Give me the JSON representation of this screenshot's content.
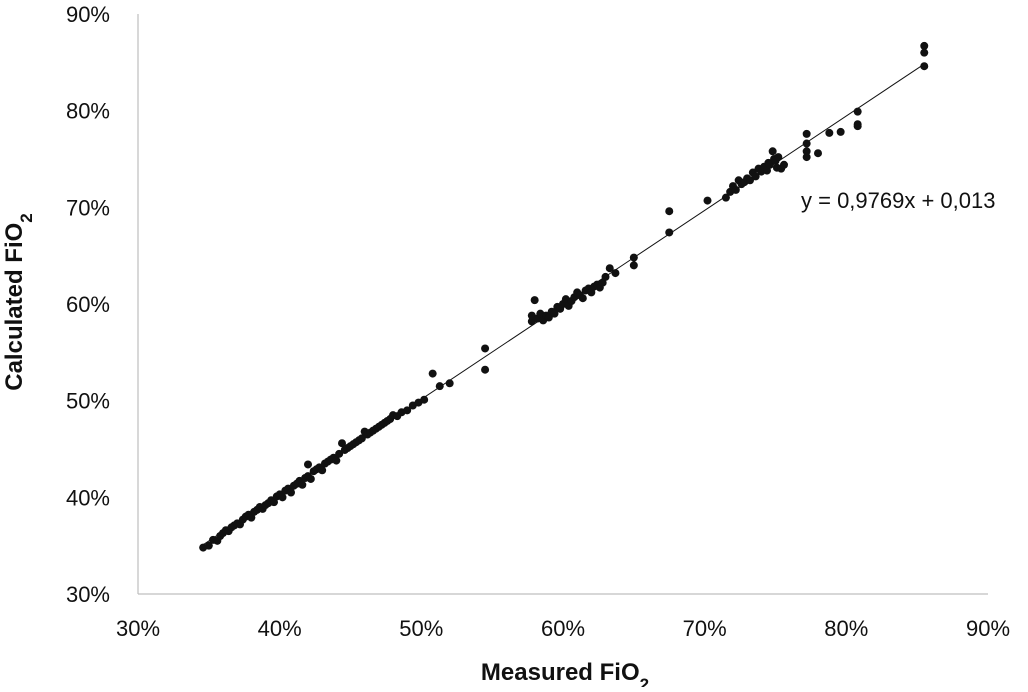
{
  "chart_data": {
    "type": "scatter",
    "xlabel": "Measured FiO",
    "xlabel_subscript": "2",
    "ylabel": "Calculated FiO",
    "ylabel_subscript": "2",
    "xlim": [
      0.3,
      0.9
    ],
    "ylim": [
      0.3,
      0.9
    ],
    "x_ticks": [
      "30%",
      "40%",
      "50%",
      "60%",
      "70%",
      "80%",
      "90%"
    ],
    "y_ticks": [
      "30%",
      "40%",
      "50%",
      "60%",
      "70%",
      "80%",
      "90%"
    ],
    "grid": false,
    "legend": "none",
    "marker_color": "#111111",
    "trendline": {
      "equation": "y = 0,9769x + 0,013",
      "slope": 0.9769,
      "intercept": 0.013,
      "x_range": [
        0.345,
        0.855
      ]
    },
    "series": [
      {
        "points": [
          [
            0.346,
            0.348
          ],
          [
            0.35,
            0.35
          ],
          [
            0.353,
            0.356
          ],
          [
            0.356,
            0.355
          ],
          [
            0.358,
            0.36
          ],
          [
            0.36,
            0.363
          ],
          [
            0.362,
            0.366
          ],
          [
            0.364,
            0.365
          ],
          [
            0.366,
            0.369
          ],
          [
            0.368,
            0.371
          ],
          [
            0.37,
            0.373
          ],
          [
            0.372,
            0.372
          ],
          [
            0.374,
            0.377
          ],
          [
            0.376,
            0.38
          ],
          [
            0.378,
            0.382
          ],
          [
            0.38,
            0.379
          ],
          [
            0.382,
            0.385
          ],
          [
            0.384,
            0.387
          ],
          [
            0.386,
            0.39
          ],
          [
            0.388,
            0.388
          ],
          [
            0.39,
            0.392
          ],
          [
            0.392,
            0.394
          ],
          [
            0.394,
            0.397
          ],
          [
            0.396,
            0.395
          ],
          [
            0.398,
            0.401
          ],
          [
            0.4,
            0.403
          ],
          [
            0.402,
            0.4
          ],
          [
            0.404,
            0.407
          ],
          [
            0.406,
            0.409
          ],
          [
            0.408,
            0.405
          ],
          [
            0.41,
            0.412
          ],
          [
            0.412,
            0.414
          ],
          [
            0.414,
            0.417
          ],
          [
            0.416,
            0.413
          ],
          [
            0.418,
            0.42
          ],
          [
            0.42,
            0.422
          ],
          [
            0.42,
            0.434
          ],
          [
            0.422,
            0.419
          ],
          [
            0.424,
            0.427
          ],
          [
            0.426,
            0.429
          ],
          [
            0.428,
            0.431
          ],
          [
            0.43,
            0.428
          ],
          [
            0.432,
            0.435
          ],
          [
            0.434,
            0.437
          ],
          [
            0.436,
            0.439
          ],
          [
            0.438,
            0.441
          ],
          [
            0.44,
            0.438
          ],
          [
            0.442,
            0.445
          ],
          [
            0.444,
            0.456
          ],
          [
            0.446,
            0.449
          ],
          [
            0.448,
            0.451
          ],
          [
            0.45,
            0.453
          ],
          [
            0.452,
            0.455
          ],
          [
            0.454,
            0.457
          ],
          [
            0.456,
            0.459
          ],
          [
            0.458,
            0.461
          ],
          [
            0.46,
            0.468
          ],
          [
            0.462,
            0.465
          ],
          [
            0.464,
            0.467
          ],
          [
            0.466,
            0.469
          ],
          [
            0.468,
            0.471
          ],
          [
            0.47,
            0.473
          ],
          [
            0.472,
            0.475
          ],
          [
            0.474,
            0.477
          ],
          [
            0.476,
            0.479
          ],
          [
            0.478,
            0.481
          ],
          [
            0.48,
            0.485
          ],
          [
            0.483,
            0.484
          ],
          [
            0.486,
            0.488
          ],
          [
            0.49,
            0.49
          ],
          [
            0.494,
            0.495
          ],
          [
            0.498,
            0.498
          ],
          [
            0.502,
            0.501
          ],
          [
            0.508,
            0.528
          ],
          [
            0.513,
            0.515
          ],
          [
            0.52,
            0.518
          ],
          [
            0.545,
            0.532
          ],
          [
            0.545,
            0.554
          ],
          [
            0.578,
            0.582
          ],
          [
            0.578,
            0.588
          ],
          [
            0.58,
            0.604
          ],
          [
            0.582,
            0.585
          ],
          [
            0.584,
            0.59
          ],
          [
            0.586,
            0.583
          ],
          [
            0.588,
            0.588
          ],
          [
            0.59,
            0.586
          ],
          [
            0.592,
            0.592
          ],
          [
            0.594,
            0.59
          ],
          [
            0.596,
            0.597
          ],
          [
            0.598,
            0.595
          ],
          [
            0.6,
            0.6
          ],
          [
            0.602,
            0.605
          ],
          [
            0.604,
            0.598
          ],
          [
            0.606,
            0.603
          ],
          [
            0.608,
            0.607
          ],
          [
            0.61,
            0.612
          ],
          [
            0.612,
            0.609
          ],
          [
            0.614,
            0.606
          ],
          [
            0.616,
            0.614
          ],
          [
            0.618,
            0.616
          ],
          [
            0.62,
            0.612
          ],
          [
            0.622,
            0.618
          ],
          [
            0.624,
            0.62
          ],
          [
            0.626,
            0.617
          ],
          [
            0.628,
            0.622
          ],
          [
            0.63,
            0.628
          ],
          [
            0.633,
            0.637
          ],
          [
            0.637,
            0.632
          ],
          [
            0.65,
            0.64
          ],
          [
            0.65,
            0.648
          ],
          [
            0.675,
            0.674
          ],
          [
            0.675,
            0.696
          ],
          [
            0.702,
            0.707
          ],
          [
            0.715,
            0.71
          ],
          [
            0.718,
            0.716
          ],
          [
            0.72,
            0.722
          ],
          [
            0.722,
            0.718
          ],
          [
            0.724,
            0.728
          ],
          [
            0.726,
            0.724
          ],
          [
            0.728,
            0.726
          ],
          [
            0.73,
            0.73
          ],
          [
            0.732,
            0.728
          ],
          [
            0.734,
            0.736
          ],
          [
            0.736,
            0.732
          ],
          [
            0.738,
            0.74
          ],
          [
            0.74,
            0.737
          ],
          [
            0.742,
            0.742
          ],
          [
            0.744,
            0.738
          ],
          [
            0.745,
            0.746
          ],
          [
            0.746,
            0.744
          ],
          [
            0.748,
            0.758
          ],
          [
            0.749,
            0.75
          ],
          [
            0.75,
            0.748
          ],
          [
            0.751,
            0.741
          ],
          [
            0.752,
            0.752
          ],
          [
            0.754,
            0.74
          ],
          [
            0.756,
            0.744
          ],
          [
            0.772,
            0.752
          ],
          [
            0.772,
            0.758
          ],
          [
            0.772,
            0.766
          ],
          [
            0.772,
            0.776
          ],
          [
            0.78,
            0.756
          ],
          [
            0.788,
            0.777
          ],
          [
            0.796,
            0.778
          ],
          [
            0.808,
            0.784
          ],
          [
            0.808,
            0.786
          ],
          [
            0.808,
            0.799
          ],
          [
            0.855,
            0.846
          ],
          [
            0.855,
            0.86
          ],
          [
            0.855,
            0.867
          ]
        ]
      }
    ]
  }
}
